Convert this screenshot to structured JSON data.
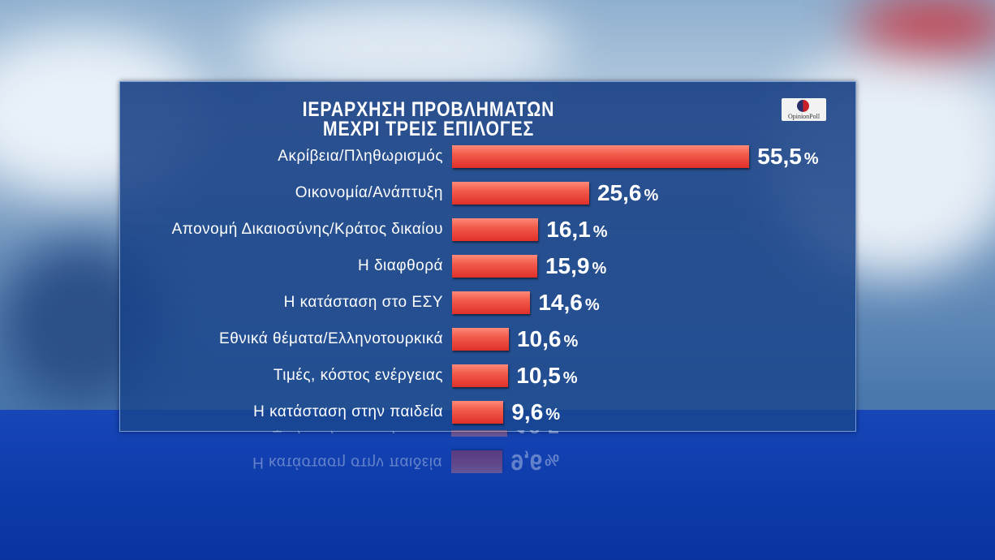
{
  "chart_data": {
    "type": "bar",
    "orientation": "horizontal",
    "title": "ΙΕΡΑΡΧΗΣΗ ΠΡΟΒΛΗΜΑΤΩΝ",
    "subtitle": "ΜΕΧΡΙ ΤΡΕΙΣ ΕΠΙΛΟΓΕΣ",
    "unit": "%",
    "categories": [
      "Ακρίβεια/Πληθωρισμός",
      "Οικονομία/Ανάπτυξη",
      "Απονομή Δικαιοσύνης/Κράτος δικαίου",
      "Η διαφθορά",
      "Η κατάσταση στο ΕΣΥ",
      "Εθνικά θέματα/Ελληνοτουρκικά",
      "Τιμές, κόστος ενέργειας",
      "Η κατάσταση στην παιδεία"
    ],
    "values": [
      55.5,
      25.6,
      16.1,
      15.9,
      14.6,
      10.6,
      10.5,
      9.6
    ],
    "value_labels": [
      "55,5",
      "25,6",
      "16,1",
      "15,9",
      "14,6",
      "10,6",
      "10,5",
      "9,6"
    ],
    "bar_color": "#f04a3c",
    "grid": false
  },
  "logo": {
    "text": "OpinionPoll"
  }
}
